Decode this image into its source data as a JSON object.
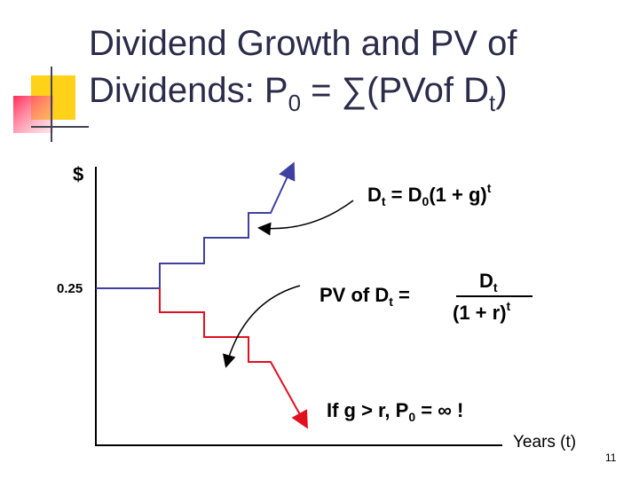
{
  "title": {
    "line1": "Dividend Growth and PV of",
    "line2": [
      "Dividends: P",
      "0",
      " = ∑(PVof D",
      "t",
      ")"
    ]
  },
  "axis": {
    "y_label": "$",
    "start_value": "0.25",
    "x_label": "Years (t)"
  },
  "growth_formula": [
    "D",
    "t",
    " = D",
    "0",
    "(1 + g)",
    "t"
  ],
  "pv_formula": {
    "lhs": [
      "PV of D",
      "t",
      " ="
    ],
    "numerator": [
      "D",
      "t"
    ],
    "denominator": [
      "(1 + r)",
      "t"
    ]
  },
  "note": [
    "If g > r, P",
    "0",
    " = ∞ !"
  ],
  "page_number": "11"
}
